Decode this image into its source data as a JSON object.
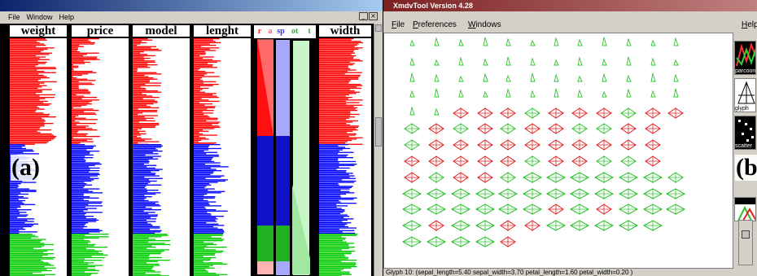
{
  "left_window": {
    "menu": [
      "File",
      "Window",
      "Help"
    ],
    "window_buttons": [
      "_",
      "×"
    ],
    "axes": [
      "weight",
      "price",
      "model",
      "lenght",
      "width"
    ],
    "stacked_axis_labels": [
      "r",
      "a",
      "sp",
      "ot",
      "t"
    ],
    "panel_label": "(a)"
  },
  "right_window": {
    "title": "XmdvTool Version 4.28",
    "menu": [
      "File",
      "Preferences",
      "Windows"
    ],
    "help_menu": "Help",
    "tools": [
      "parcoord",
      "glyph",
      "scatter"
    ],
    "panel_label": "(b)",
    "status": "Glyph 10: (sepal_length=5.40 sepal_width=3.70 petal_length=1.60 petal_width=0.20 )"
  },
  "colors": {
    "cluster1": "#ff0000",
    "cluster2": "#0000ff",
    "cluster3": "#00cc00",
    "glyph_red": "#e02020",
    "glyph_green": "#30c030"
  }
}
